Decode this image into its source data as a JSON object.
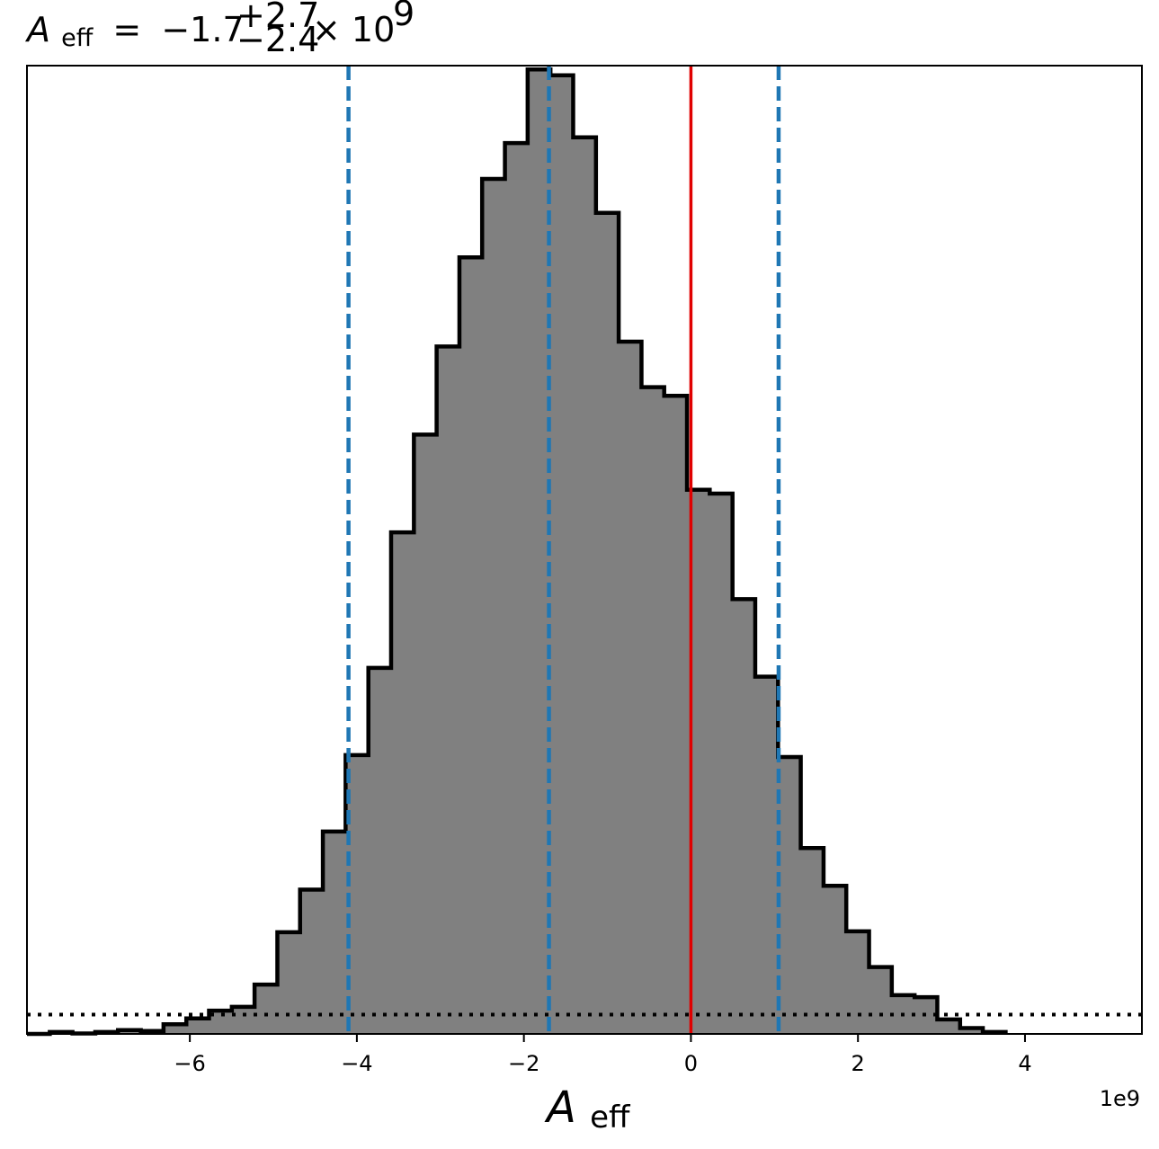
{
  "chart_data": {
    "type": "histogram",
    "title": {
      "symbol": "A",
      "subscript": "eff",
      "equals": "=",
      "median": "−1.7",
      "upper_error": "+2.7",
      "lower_error": "−2.4",
      "times_ten": "× 10",
      "exponent": "9"
    },
    "xlabel": {
      "symbol": "A",
      "subscript": "eff"
    },
    "ylabel": "",
    "x_offset_text": "1e9",
    "xlim": [
      -7.95,
      5.4
    ],
    "x_scale_factor": 1000000000,
    "x_ticks": [
      -6,
      -4,
      -2,
      0,
      2,
      4
    ],
    "x_tick_labels": [
      "−6",
      "−4",
      "−2",
      "0",
      "2",
      "4"
    ],
    "y_ticks_visible": false,
    "bin_edges": [
      -7.95,
      -7.677,
      -7.405,
      -7.132,
      -6.86,
      -6.587,
      -6.315,
      -6.042,
      -5.77,
      -5.497,
      -5.225,
      -4.952,
      -4.68,
      -4.407,
      -4.135,
      -3.862,
      -3.59,
      -3.317,
      -3.045,
      -2.772,
      -2.5,
      -2.227,
      -1.955,
      -1.682,
      -1.41,
      -1.137,
      -0.865,
      -0.592,
      -0.32,
      -0.047,
      0.225,
      0.498,
      0.77,
      1.043,
      1.315,
      1.588,
      1.86,
      2.133,
      2.405,
      2.678,
      2.95,
      3.223,
      3.495,
      3.768
    ],
    "counts": [
      0,
      0.2,
      0.05,
      0.2,
      0.4,
      0.3,
      1.0,
      1.6,
      2.4,
      2.8,
      5.1,
      10.5,
      14.9,
      20.9,
      28.8,
      37.8,
      51.8,
      61.9,
      71.0,
      80.2,
      88.3,
      92.0,
      99.6,
      99.0,
      92.6,
      84.8,
      71.5,
      66.8,
      65.9,
      56.2,
      55.8,
      44.9,
      36.9,
      28.6,
      19.2,
      15.3,
      10.6,
      6.9,
      4.0,
      3.8,
      1.5,
      0.6,
      0.2
    ],
    "bar_color": "#808080",
    "edge_color": "#000000",
    "vertical_lines": [
      {
        "x": -4.1,
        "style": "dashed",
        "color": "#1f77b4"
      },
      {
        "x": -1.7,
        "style": "dashed",
        "color": "#1f77b4"
      },
      {
        "x": 1.05,
        "style": "dashed",
        "color": "#1f77b4"
      },
      {
        "x": 0,
        "style": "solid",
        "color": "#e00000"
      }
    ],
    "horizontal_line": {
      "y": 2.0,
      "style": "dotted",
      "color": "#000000"
    },
    "grid": false,
    "legend": "none"
  }
}
